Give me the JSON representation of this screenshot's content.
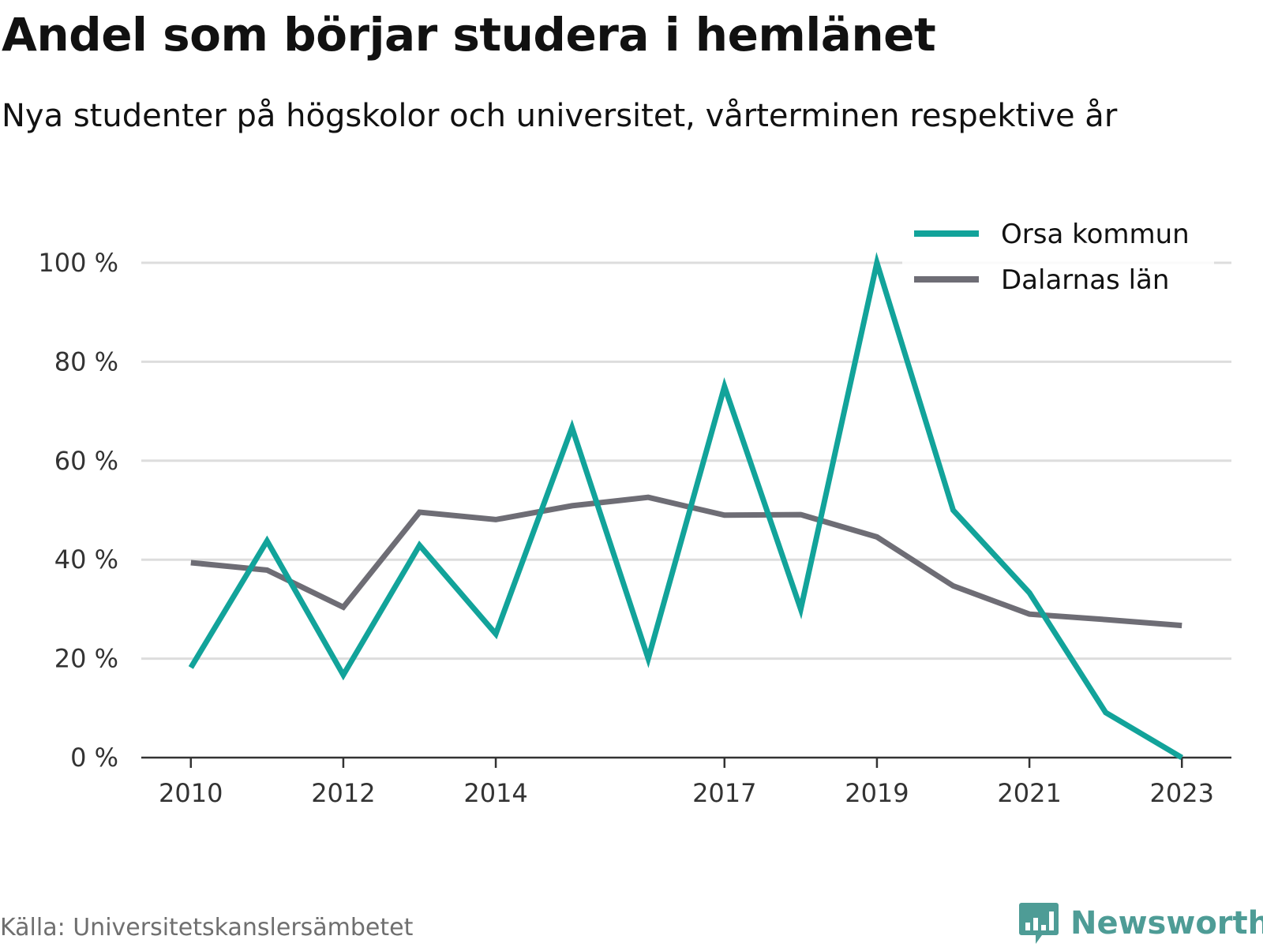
{
  "header": {
    "title": "Andel som börjar studera i hemlänet",
    "subtitle": "Nya studenter på högskolor och universitet, vårterminen respektive år"
  },
  "footer": {
    "source": "Källa: Universitetskanslersämbetet",
    "brand": "Newsworthy",
    "brand_icon": "bar-chart-speech-bubble-icon",
    "brand_color": "#4e9c96"
  },
  "chart_data": {
    "type": "line",
    "title": "Andel som börjar studera i hemlänet",
    "subtitle": "Nya studenter på högskolor och universitet, vårterminen respektive år",
    "x": [
      2010,
      2011,
      2012,
      2013,
      2014,
      2015,
      2016,
      2017,
      2018,
      2019,
      2020,
      2021,
      2022,
      2023
    ],
    "x_tick_labels": [
      "2010",
      "2012",
      "2014",
      "2017",
      "2019",
      "2021",
      "2023"
    ],
    "x_ticks": [
      2010,
      2012,
      2014,
      2017,
      2019,
      2021,
      2023
    ],
    "y_ticks": [
      0,
      20,
      40,
      60,
      80,
      100
    ],
    "y_tick_labels": [
      "0 %",
      "20 %",
      "40 %",
      "60 %",
      "80 %",
      "100 %"
    ],
    "ylim": [
      0,
      100
    ],
    "xlim": [
      2009.35,
      2023.65
    ],
    "grid": "horizontal",
    "legend": "top-right",
    "series": [
      {
        "name": "Orsa kommun",
        "color": "#12a39a",
        "values": [
          18.2,
          43.8,
          16.7,
          42.9,
          25.0,
          66.7,
          20.0,
          75.0,
          30.0,
          100.0,
          50.0,
          33.3,
          9.1,
          0.0
        ]
      },
      {
        "name": "Dalarnas län",
        "color": "#6e6d75",
        "values": [
          39.4,
          37.9,
          30.4,
          49.6,
          48.1,
          50.9,
          52.6,
          49.0,
          49.1,
          44.6,
          34.7,
          29.0,
          27.9,
          26.7
        ]
      }
    ]
  }
}
